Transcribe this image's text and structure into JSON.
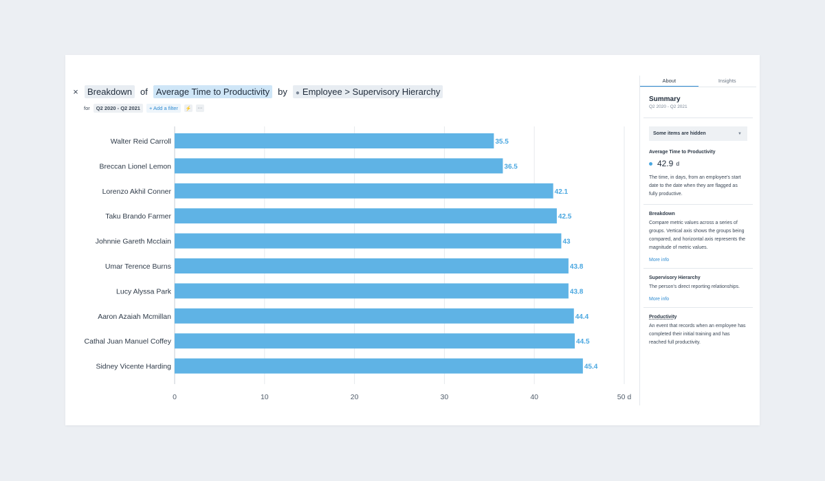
{
  "header": {
    "close_glyph": "×",
    "breakdown": "Breakdown",
    "of": "of",
    "metric": "Average Time to Productivity",
    "by": "by",
    "eye_icon": "eye-icon",
    "group": "Employee > Supervisory Hierarchy"
  },
  "filters": {
    "for_label": "for",
    "period": "Q2 2020 - Q2 2021",
    "add_filter": "+ Add a filter",
    "bolt_glyph": "⚡",
    "more_glyph": "···"
  },
  "colors": {
    "bar": "#5fb3e5",
    "value_label": "#4aa7e0",
    "accent": "#2e8bd1"
  },
  "chart_data": {
    "type": "bar",
    "orientation": "horizontal",
    "categories": [
      "Walter Reid Carroll",
      "Breccan Lionel Lemon",
      "Lorenzo Akhil Conner",
      "Taku Brando Farmer",
      "Johnnie Gareth Mcclain",
      "Umar Terence Burns",
      "Lucy Alyssa Park",
      "Aaron Azaiah Mcmillan",
      "Cathal Juan Manuel Coffey",
      "Sidney Vicente Harding"
    ],
    "values": [
      35.5,
      36.5,
      42.1,
      42.5,
      43,
      43.8,
      43.8,
      44.4,
      44.5,
      45.4
    ],
    "value_labels": [
      "35.5",
      "36.5",
      "42.1",
      "42.5",
      "43",
      "43.8",
      "43.8",
      "44.4",
      "44.5",
      "45.4"
    ],
    "xlim": [
      0,
      50
    ],
    "x_ticks": [
      0,
      10,
      20,
      30,
      40,
      50
    ],
    "x_tick_labels": [
      "0",
      "10",
      "20",
      "30",
      "40",
      "50 d"
    ],
    "grid": true
  },
  "sidebar": {
    "tabs": [
      "About",
      "Insights"
    ],
    "active_tab": "About",
    "summary_title": "Summary",
    "summary_period": "Q2 2020 - Q2 2021",
    "dropdown_label": "Some items are hidden",
    "metric_label": "Average Time to Productivity",
    "metric_value": "42.9",
    "metric_unit": "d",
    "metric_desc": "The time, in days, from an employee's start date to the date when they are flagged as fully productive.",
    "breakdown_title": "Breakdown",
    "breakdown_desc": "Compare metric values across a series of groups. Vertical axis shows the groups being compared, and horizontal axis represents the magnitude of metric values.",
    "more_info": "More info",
    "hierarchy_title": "Supervisory Hierarchy",
    "hierarchy_desc": "The person's direct reporting relationships.",
    "productivity_title": "Productivity",
    "productivity_desc": "An event that records when an employee has completed their initial training and has reached full productivity."
  }
}
